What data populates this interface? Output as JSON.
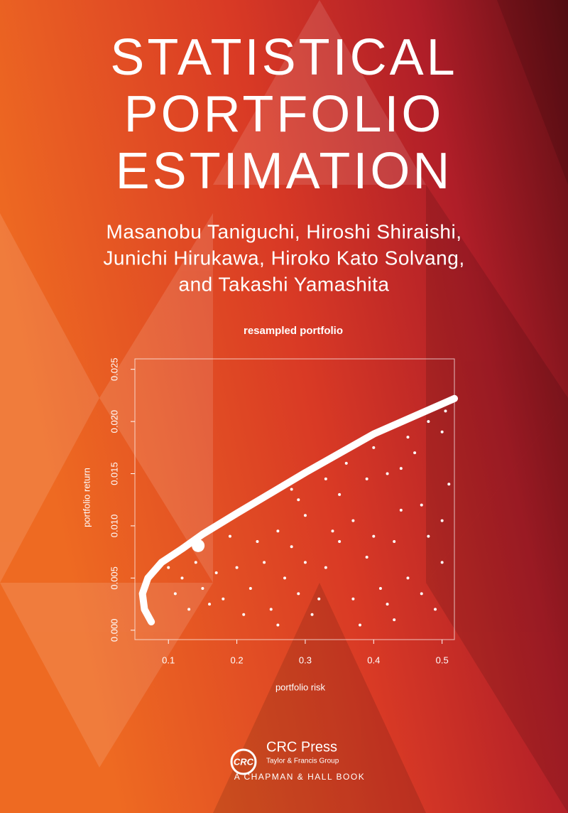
{
  "cover": {
    "title_lines": [
      "STATISTICAL",
      "PORTFOLIO",
      "ESTIMATION"
    ],
    "author_lines": [
      "Masanobu Taniguchi, Hiroshi Shiraishi,",
      "Junichi Hirukawa, Hiroko Kato Solvang,",
      "and Takashi Yamashita"
    ],
    "publisher": {
      "logo": "CRC",
      "name": "CRC Press",
      "group": "Taylor & Francis Group",
      "imprint": "A CHAPMAN & HALL BOOK"
    }
  },
  "chart_data": {
    "type": "scatter",
    "title": "resampled portfolio",
    "x_label": "portfolio risk",
    "y_label": "portfolio return",
    "color": "#ffffff",
    "xlim": [
      0.051,
      0.518
    ],
    "ylim": [
      -0.0009,
      0.026
    ],
    "xticks": [
      0.1,
      0.2,
      0.3,
      0.4,
      0.5
    ],
    "yticks": [
      {
        "value": 0,
        "label": "0.000"
      },
      {
        "value": 0.005,
        "label": "0.005"
      },
      {
        "value": 0.01,
        "label": "0.010"
      },
      {
        "value": 0.015,
        "label": "0.015"
      },
      {
        "value": 0.02,
        "label": "0.020"
      },
      {
        "value": 0.025,
        "label": "0.025"
      }
    ],
    "frontier": {
      "x": [
        0.075,
        0.065,
        0.062,
        0.07,
        0.09,
        0.12,
        0.15,
        0.2,
        0.3,
        0.4,
        0.518
      ],
      "y": [
        0.0008,
        0.002,
        0.0035,
        0.005,
        0.0065,
        0.0078,
        0.0092,
        0.0112,
        0.0151,
        0.0188,
        0.0222
      ]
    },
    "highlight": {
      "x": 0.1435,
      "y": 0.0081
    },
    "points": {
      "x": [
        0.22,
        0.25,
        0.28,
        0.3,
        0.33,
        0.35,
        0.37,
        0.4,
        0.42,
        0.45,
        0.47,
        0.5,
        0.5,
        0.49,
        0.43,
        0.38,
        0.31,
        0.26,
        0.24,
        0.29,
        0.34,
        0.36,
        0.39,
        0.41,
        0.44,
        0.46,
        0.48,
        0.51,
        0.505,
        0.48,
        0.45,
        0.32,
        0.27,
        0.23,
        0.21,
        0.2,
        0.18,
        0.19,
        0.17,
        0.16,
        0.15,
        0.14,
        0.13,
        0.12,
        0.11,
        0.1,
        0.35,
        0.4,
        0.43,
        0.37,
        0.28,
        0.33,
        0.26,
        0.29,
        0.42,
        0.47,
        0.5,
        0.39,
        0.44,
        0.3
      ],
      "y": [
        0.004,
        0.002,
        0.008,
        0.011,
        0.006,
        0.013,
        0.003,
        0.009,
        0.015,
        0.005,
        0.012,
        0.019,
        0.0065,
        0.002,
        0.001,
        0.0005,
        0.0015,
        0.0095,
        0.0065,
        0.0125,
        0.0095,
        0.016,
        0.0145,
        0.004,
        0.0115,
        0.017,
        0.009,
        0.014,
        0.021,
        0.02,
        0.0185,
        0.003,
        0.005,
        0.0085,
        0.0015,
        0.006,
        0.003,
        0.009,
        0.0055,
        0.0025,
        0.004,
        0.0065,
        0.002,
        0.005,
        0.0035,
        0.006,
        0.0085,
        0.0175,
        0.0085,
        0.0105,
        0.0135,
        0.0145,
        0.0005,
        0.0035,
        0.0025,
        0.0035,
        0.0105,
        0.007,
        0.0155,
        0.0065
      ]
    }
  }
}
